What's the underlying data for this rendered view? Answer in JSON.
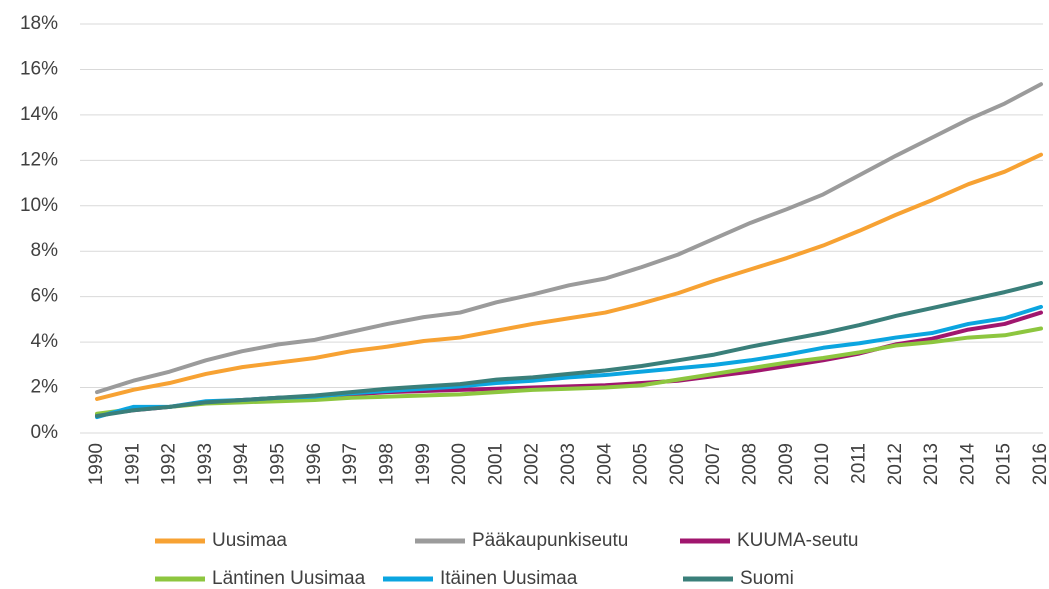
{
  "chart_data": {
    "type": "line",
    "categories": [
      "1990",
      "1991",
      "1992",
      "1993",
      "1994",
      "1995",
      "1996",
      "1997",
      "1998",
      "1999",
      "2000",
      "2001",
      "2002",
      "2003",
      "2004",
      "2005",
      "2006",
      "2007",
      "2008",
      "2009",
      "2010",
      "2011",
      "2012",
      "2013",
      "2014",
      "2015",
      "2016"
    ],
    "series": [
      {
        "name": "Uusimaa",
        "color": "#f7a233",
        "values": [
          1.5,
          1.9,
          2.2,
          2.6,
          2.9,
          3.1,
          3.3,
          3.6,
          3.8,
          4.05,
          4.2,
          4.5,
          4.8,
          5.05,
          5.3,
          5.7,
          6.15,
          6.7,
          7.2,
          7.7,
          8.25,
          8.9,
          9.6,
          10.25,
          10.95,
          11.5,
          12.25
        ]
      },
      {
        "name": "Pääkaupunkiseutu",
        "color": "#9b9b9b",
        "values": [
          1.8,
          2.3,
          2.7,
          3.2,
          3.6,
          3.9,
          4.1,
          4.45,
          4.8,
          5.1,
          5.3,
          5.75,
          6.1,
          6.5,
          6.8,
          7.3,
          7.85,
          8.55,
          9.25,
          9.85,
          10.5,
          11.35,
          12.2,
          13.0,
          13.8,
          14.5,
          15.35
        ]
      },
      {
        "name": "KUUMA-seutu",
        "color": "#a0166e",
        "values": [
          0.8,
          1.0,
          1.15,
          1.35,
          1.45,
          1.55,
          1.6,
          1.7,
          1.8,
          1.85,
          1.9,
          1.95,
          2.0,
          2.05,
          2.1,
          2.2,
          2.3,
          2.5,
          2.7,
          2.95,
          3.2,
          3.5,
          3.9,
          4.15,
          4.55,
          4.8,
          5.3
        ]
      },
      {
        "name": "Läntinen Uusimaa",
        "color": "#8dc63f",
        "values": [
          0.85,
          1.05,
          1.15,
          1.3,
          1.35,
          1.4,
          1.45,
          1.55,
          1.6,
          1.65,
          1.7,
          1.8,
          1.9,
          1.95,
          2.0,
          2.1,
          2.35,
          2.6,
          2.85,
          3.1,
          3.3,
          3.55,
          3.85,
          4.0,
          4.2,
          4.3,
          4.6
        ]
      },
      {
        "name": "Itäinen Uusimaa",
        "color": "#0ba5e0",
        "values": [
          0.7,
          1.15,
          1.15,
          1.4,
          1.45,
          1.55,
          1.6,
          1.75,
          1.85,
          1.95,
          2.05,
          2.2,
          2.3,
          2.45,
          2.55,
          2.7,
          2.85,
          3.0,
          3.2,
          3.45,
          3.75,
          3.95,
          4.2,
          4.4,
          4.8,
          5.05,
          5.55
        ]
      },
      {
        "name": "Suomi",
        "color": "#3a7f7a",
        "values": [
          0.75,
          1.0,
          1.15,
          1.35,
          1.45,
          1.55,
          1.65,
          1.8,
          1.95,
          2.05,
          2.15,
          2.35,
          2.45,
          2.6,
          2.75,
          2.95,
          3.2,
          3.45,
          3.8,
          4.1,
          4.4,
          4.75,
          5.15,
          5.5,
          5.85,
          6.2,
          6.6
        ]
      }
    ],
    "ylim": [
      0,
      18
    ],
    "yticks": [
      {
        "value": 0,
        "label": "0%"
      },
      {
        "value": 2,
        "label": "2%"
      },
      {
        "value": 4,
        "label": "4%"
      },
      {
        "value": 6,
        "label": "6%"
      },
      {
        "value": 8,
        "label": "8%"
      },
      {
        "value": 10,
        "label": "10%"
      },
      {
        "value": 12,
        "label": "12%"
      },
      {
        "value": 14,
        "label": "14%"
      },
      {
        "value": 16,
        "label": "16%"
      },
      {
        "value": 18,
        "label": "18%"
      }
    ],
    "grid": true,
    "legend": "bottom"
  }
}
